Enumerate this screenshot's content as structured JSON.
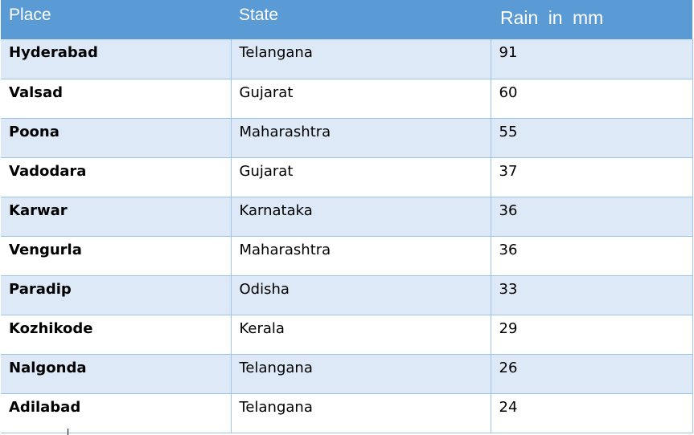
{
  "table": {
    "headers": [
      "Place",
      "State",
      "Rain  in  mm"
    ],
    "rows": [
      [
        "Hyderabad",
        "Telangana",
        "91"
      ],
      [
        "Valsad",
        "Gujarat",
        "60"
      ],
      [
        "Poona",
        "Maharashtra",
        "55"
      ],
      [
        "Vadodara",
        "Gujarat",
        "37"
      ],
      [
        "Karwar",
        "Karnataka",
        "36"
      ],
      [
        "Vengurla",
        "Maharashtra",
        "36"
      ],
      [
        "Paradip",
        "Odisha",
        "33"
      ],
      [
        "Kozhikode",
        "Kerala",
        "29"
      ],
      [
        "Nalgonda",
        "Telangana",
        "26"
      ],
      [
        "Adilabad",
        "Telangana",
        "24"
      ]
    ]
  },
  "colors": {
    "header_bg": "#5b9bd5",
    "band_bg": "#dde9f6",
    "grid_line": "#9dc3e6"
  }
}
